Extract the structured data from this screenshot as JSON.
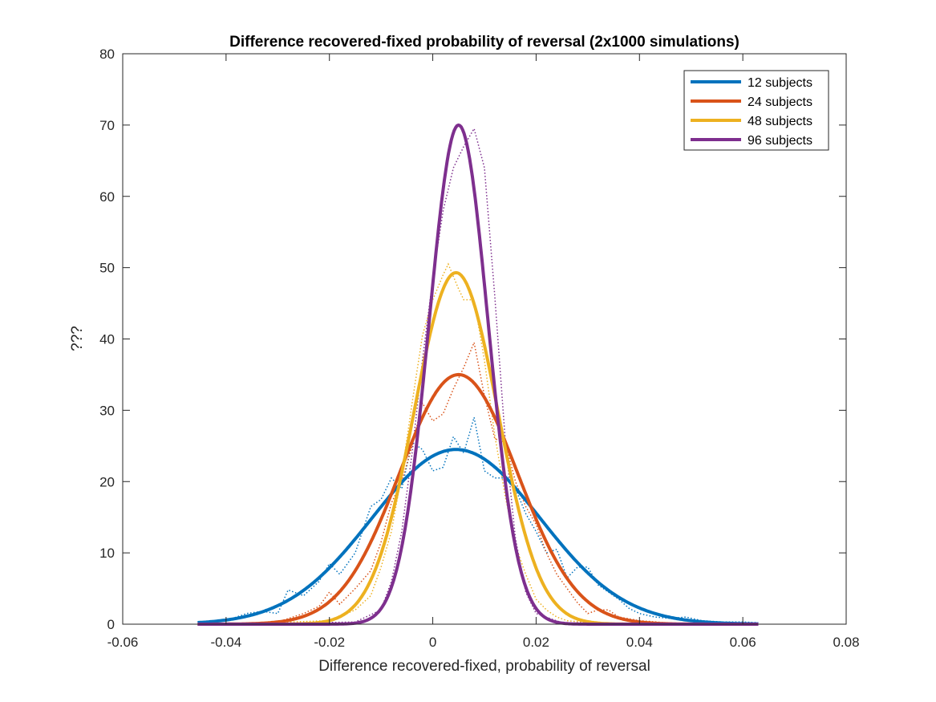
{
  "chart_data": {
    "type": "line",
    "title": "Difference recovered-fixed probability of reversal (2x1000 simulations)",
    "xlabel": "Difference recovered-fixed, probability of reversal",
    "ylabel": "???",
    "xlim": [
      -0.06,
      0.08
    ],
    "ylim": [
      0,
      80
    ],
    "xticks": [
      -0.06,
      -0.04,
      -0.02,
      0,
      0.02,
      0.04,
      0.06,
      0.08
    ],
    "xtick_labels": [
      "-0.06",
      "-0.04",
      "-0.02",
      "0",
      "0.02",
      "0.04",
      "0.06",
      "0.08"
    ],
    "yticks": [
      0,
      10,
      20,
      30,
      40,
      50,
      60,
      70,
      80
    ],
    "ytick_labels": [
      "0",
      "10",
      "20",
      "30",
      "40",
      "50",
      "60",
      "70",
      "80"
    ],
    "grid": false,
    "legend_position": "top-right",
    "fit_x_range": [
      -0.0455,
      0.063
    ],
    "series": [
      {
        "name": "12 subjects",
        "color": "#0072BD",
        "fit": {
          "mean": 0.0045,
          "peak": 24.5
        },
        "empirical_x": [
          -0.045,
          -0.04,
          -0.036,
          -0.033,
          -0.03,
          -0.028,
          -0.025,
          -0.022,
          -0.02,
          -0.018,
          -0.015,
          -0.012,
          -0.01,
          -0.008,
          -0.006,
          -0.004,
          -0.002,
          0.0,
          0.002,
          0.004,
          0.006,
          0.008,
          0.01,
          0.012,
          0.014,
          0.016,
          0.018,
          0.02,
          0.022,
          0.024,
          0.026,
          0.028,
          0.03,
          0.032,
          0.034,
          0.036,
          0.038,
          0.04,
          0.043,
          0.046,
          0.049,
          0.052,
          0.056,
          0.06,
          0.063
        ],
        "empirical_y": [
          0.3,
          0.5,
          1.5,
          1.8,
          1.5,
          4.8,
          4.0,
          6.0,
          8.5,
          7.0,
          10.0,
          16.5,
          17.5,
          20.5,
          19.0,
          25.5,
          24.5,
          21.5,
          22.0,
          26.3,
          24.0,
          29.0,
          21.5,
          20.5,
          20.5,
          19.0,
          15.5,
          13.0,
          10.0,
          10.5,
          6.5,
          8.0,
          8.0,
          5.5,
          4.5,
          3.5,
          2.2,
          1.5,
          1.0,
          0.8,
          1.0,
          0.5,
          0.3,
          0.3,
          0.2
        ]
      },
      {
        "name": "24 subjects",
        "color": "#D95319",
        "fit": {
          "mean": 0.005,
          "peak": 35.0
        },
        "empirical_x": [
          -0.04,
          -0.03,
          -0.025,
          -0.022,
          -0.02,
          -0.018,
          -0.015,
          -0.012,
          -0.01,
          -0.008,
          -0.006,
          -0.004,
          -0.002,
          0.0,
          0.002,
          0.004,
          0.006,
          0.008,
          0.01,
          0.012,
          0.014,
          0.016,
          0.018,
          0.02,
          0.022,
          0.024,
          0.026,
          0.028,
          0.03,
          0.032,
          0.034,
          0.036,
          0.04,
          0.045,
          0.05,
          0.06
        ],
        "empirical_y": [
          0.0,
          0.3,
          1.5,
          2.5,
          4.5,
          2.8,
          5.0,
          7.5,
          11.5,
          17.0,
          20.0,
          25.0,
          31.0,
          28.5,
          29.5,
          33.0,
          36.0,
          39.5,
          32.0,
          26.0,
          25.5,
          20.0,
          16.5,
          14.0,
          10.0,
          7.0,
          5.0,
          3.0,
          1.5,
          2.0,
          2.0,
          1.0,
          0.5,
          0.2,
          0.0,
          0.0
        ]
      },
      {
        "name": "48 subjects",
        "color": "#EDB120",
        "fit": {
          "mean": 0.0045,
          "peak": 49.3
        },
        "empirical_x": [
          -0.04,
          -0.02,
          -0.015,
          -0.012,
          -0.01,
          -0.008,
          -0.006,
          -0.004,
          -0.002,
          0.0,
          0.002,
          0.003,
          0.005,
          0.006,
          0.008,
          0.01,
          0.012,
          0.014,
          0.016,
          0.018,
          0.02,
          0.022,
          0.024,
          0.026,
          0.03,
          0.04,
          0.06
        ],
        "empirical_y": [
          0.0,
          0.5,
          2.0,
          4.0,
          8.0,
          13.0,
          21.0,
          31.0,
          40.5,
          45.5,
          49.0,
          50.5,
          47.0,
          45.5,
          45.5,
          37.0,
          26.5,
          18.0,
          11.0,
          7.0,
          3.5,
          2.0,
          1.0,
          0.5,
          0.2,
          0.0,
          0.0
        ]
      },
      {
        "name": "96 subjects",
        "color": "#7E2F8E",
        "fit": {
          "mean": 0.005,
          "peak": 70.0
        },
        "empirical_x": [
          -0.04,
          -0.015,
          -0.01,
          -0.008,
          -0.006,
          -0.004,
          -0.002,
          0.0,
          0.002,
          0.004,
          0.006,
          0.008,
          0.01,
          0.012,
          0.014,
          0.016,
          0.018,
          0.02,
          0.025,
          0.06
        ],
        "empirical_y": [
          0.0,
          0.3,
          2.0,
          6.0,
          13.0,
          24.0,
          37.0,
          48.5,
          58.0,
          64.0,
          67.0,
          69.5,
          64.0,
          46.0,
          26.0,
          12.0,
          4.5,
          1.5,
          0.2,
          0.0
        ]
      }
    ]
  }
}
